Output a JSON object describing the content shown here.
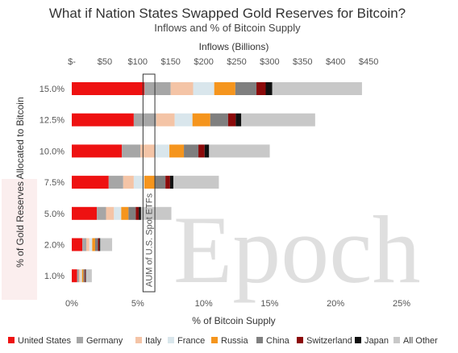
{
  "chart_data": {
    "type": "bar",
    "orientation": "horizontal",
    "stacked": true,
    "title": "What if Nation States Swapped Gold Reserves for Bitcoin?",
    "subtitle": "Inflows and % of Bitcoin Supply",
    "xlabel_bottom": "% of Bitcoin Supply",
    "xlabel_top": "Inflows (Billions)",
    "ylabel": "% of Gold Reserves Allocated to Bitcoin",
    "x_bottom_ticks": [
      "0%",
      "5%",
      "10%",
      "15%",
      "20%",
      "25%"
    ],
    "x_bottom_lim": [
      0,
      25
    ],
    "x_top_ticks": [
      {
        "label": "$-",
        "value": 0
      },
      {
        "label": "$50",
        "value": 50
      },
      {
        "label": "$100",
        "value": 100
      },
      {
        "label": "$150",
        "value": 150
      },
      {
        "label": "$200",
        "value": 200
      },
      {
        "label": "$250",
        "value": 250
      },
      {
        "label": "$300",
        "value": 300
      },
      {
        "label": "$350",
        "value": 350
      },
      {
        "label": "$400",
        "value": 400
      },
      {
        "label": "$450",
        "value": 450
      }
    ],
    "x_top_lim": [
      0,
      500
    ],
    "categories": [
      "15.0%",
      "12.5%",
      "10.0%",
      "7.5%",
      "5.0%",
      "2.0%",
      "1.0%"
    ],
    "series": [
      {
        "name": "United States",
        "color": "#ee1111",
        "values": [
          5.5,
          4.7,
          3.8,
          2.8,
          1.9,
          0.8,
          0.4
        ]
      },
      {
        "name": "Germany",
        "color": "#a6a6a6",
        "values": [
          2.0,
          1.7,
          1.4,
          1.1,
          0.7,
          0.3,
          0.15
        ]
      },
      {
        "name": "Italy",
        "color": "#f4c4a6",
        "values": [
          1.7,
          1.4,
          1.1,
          0.8,
          0.6,
          0.23,
          0.11
        ]
      },
      {
        "name": "France",
        "color": "#d9e6ec",
        "values": [
          1.6,
          1.35,
          1.1,
          0.8,
          0.55,
          0.22,
          0.11
        ]
      },
      {
        "name": "Russia",
        "color": "#f5951d",
        "values": [
          1.6,
          1.35,
          1.1,
          0.8,
          0.55,
          0.22,
          0.11
        ]
      },
      {
        "name": "China",
        "color": "#7f7f7f",
        "values": [
          1.6,
          1.35,
          1.1,
          0.8,
          0.55,
          0.22,
          0.11
        ]
      },
      {
        "name": "Switzerland",
        "color": "#8b0a0a",
        "values": [
          0.7,
          0.58,
          0.47,
          0.35,
          0.23,
          0.1,
          0.05
        ]
      },
      {
        "name": "Japan",
        "color": "#111111",
        "values": [
          0.5,
          0.42,
          0.34,
          0.25,
          0.17,
          0.07,
          0.03
        ]
      },
      {
        "name": "All Other",
        "color": "#c8c8c8",
        "values": [
          6.8,
          5.6,
          4.6,
          3.45,
          2.3,
          0.9,
          0.45
        ]
      }
    ],
    "annotation": {
      "label": "AUM of U.S. Spot ETFs",
      "x_range": [
        5.4,
        6.3
      ]
    },
    "grid": false,
    "legend_position": "bottom"
  },
  "watermark": {
    "text": "Epoch"
  }
}
